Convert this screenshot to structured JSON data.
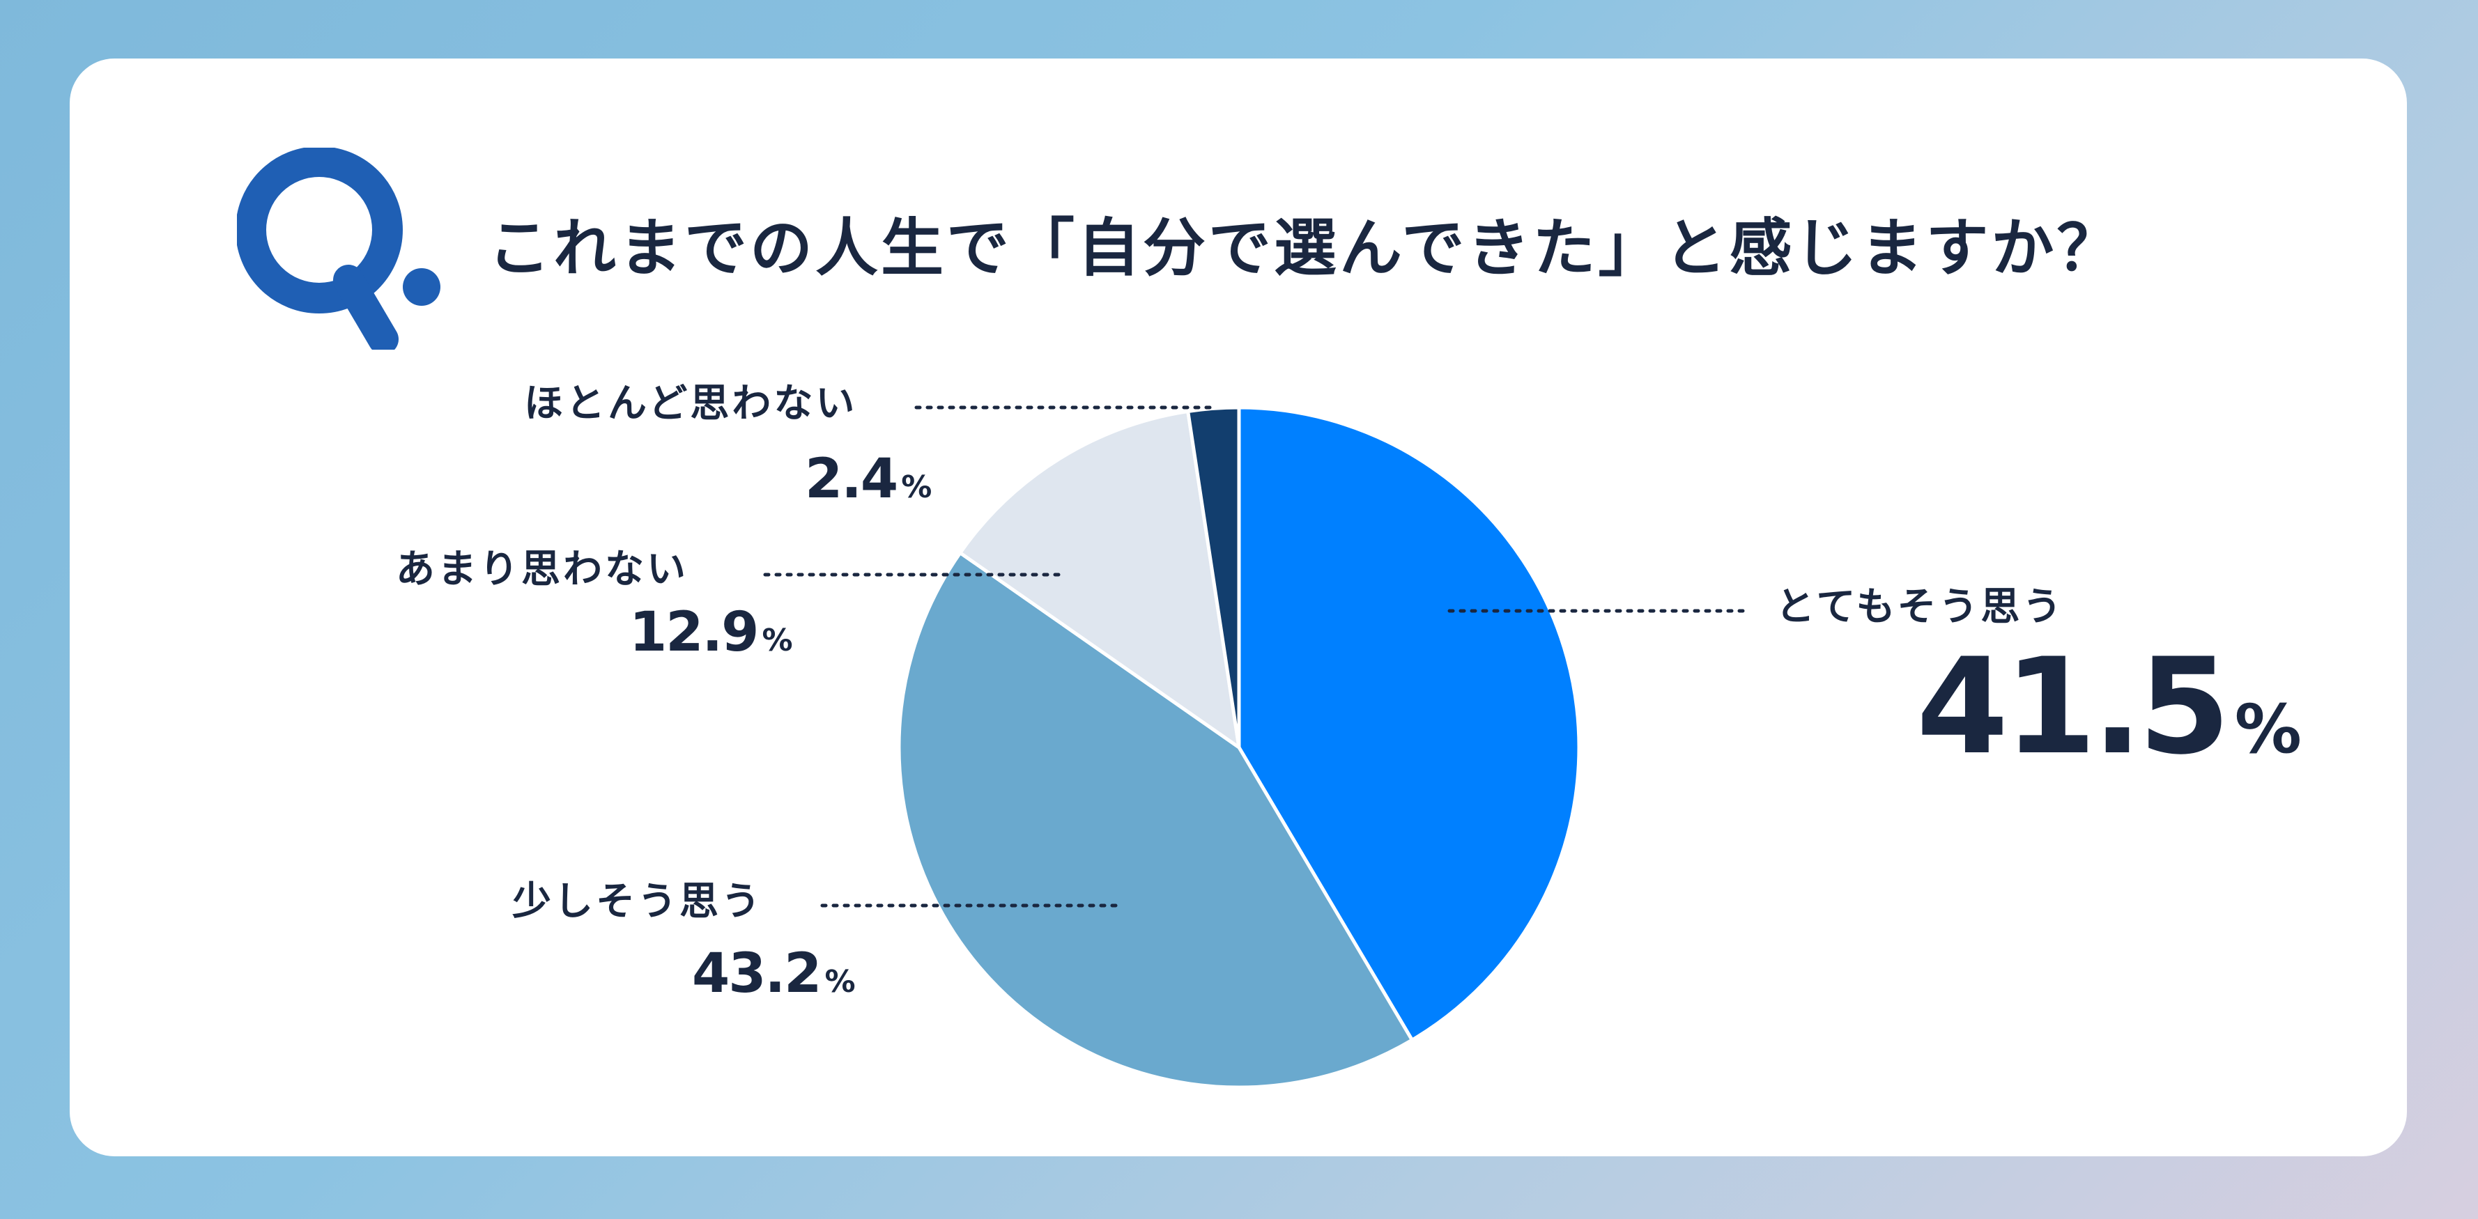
{
  "question": {
    "mark": "Q.",
    "text": "これまでの人生で「自分で選んできた」と感じますか？"
  },
  "colors": {
    "title": "#1a2740",
    "q_mark": "#1f5fb4",
    "slice_very": "#0080ff",
    "slice_little": "#6aa9ce",
    "slice_notmuch": "#dfe6ef",
    "slice_hardly": "#123e6e"
  },
  "percent_unit": "%",
  "chart_data": {
    "type": "pie",
    "start": "12 o'clock, clockwise",
    "slices": [
      {
        "label": "とてもそう思う",
        "value": 41.5,
        "value_text": "41.5",
        "color": "#0080ff"
      },
      {
        "label": "少しそう思う",
        "value": 43.2,
        "value_text": "43.2",
        "color": "#6aa9ce"
      },
      {
        "label": "あまり思わない",
        "value": 12.9,
        "value_text": "12.9",
        "color": "#dfe6ef"
      },
      {
        "label": "ほとんど思わない",
        "value": 2.4,
        "value_text": "2.4",
        "color": "#123e6e"
      }
    ]
  }
}
